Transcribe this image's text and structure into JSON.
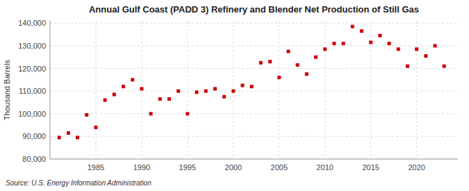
{
  "chart_data": {
    "type": "scatter",
    "title": "Annual Gulf Coast (PADD 3) Refinery and Blender Net Production of Still Gas",
    "ylabel": "Thousand Barrels",
    "source": "Source: U.S. Energy Information Administration",
    "x": [
      1981,
      1982,
      1983,
      1984,
      1985,
      1986,
      1987,
      1988,
      1989,
      1990,
      1991,
      1992,
      1993,
      1994,
      1995,
      1996,
      1997,
      1998,
      1999,
      2000,
      2001,
      2002,
      2003,
      2004,
      2005,
      2006,
      2007,
      2008,
      2009,
      2010,
      2011,
      2012,
      2013,
      2014,
      2015,
      2016,
      2017,
      2018,
      2019,
      2020,
      2021,
      2022,
      2023
    ],
    "values": [
      89500,
      91500,
      89500,
      99500,
      94000,
      106000,
      108500,
      112000,
      115000,
      111000,
      100000,
      106500,
      106500,
      110000,
      100000,
      109500,
      110000,
      111000,
      107500,
      110000,
      112500,
      112000,
      122500,
      123000,
      116000,
      127500,
      121500,
      117500,
      125000,
      128500,
      131000,
      131000,
      138500,
      136500,
      131500,
      134500,
      131000,
      128500,
      121000,
      128500,
      125500,
      130000,
      121000
    ],
    "color": "#cc0000",
    "marker": "square",
    "xlim": [
      1980,
      2024.5
    ],
    "ylim": [
      80000,
      141000
    ],
    "xticks": [
      1985,
      1990,
      1995,
      2000,
      2005,
      2010,
      2015,
      2020
    ],
    "yticks": [
      {
        "value": 80000,
        "label": "80,000"
      },
      {
        "value": 90000,
        "label": "90,000"
      },
      {
        "value": 100000,
        "label": "100,000"
      },
      {
        "value": 110000,
        "label": "110,000"
      },
      {
        "value": 120000,
        "label": "120,000"
      },
      {
        "value": 130000,
        "label": "130,000"
      },
      {
        "value": 140000,
        "label": "140,000"
      }
    ],
    "grid": true
  }
}
